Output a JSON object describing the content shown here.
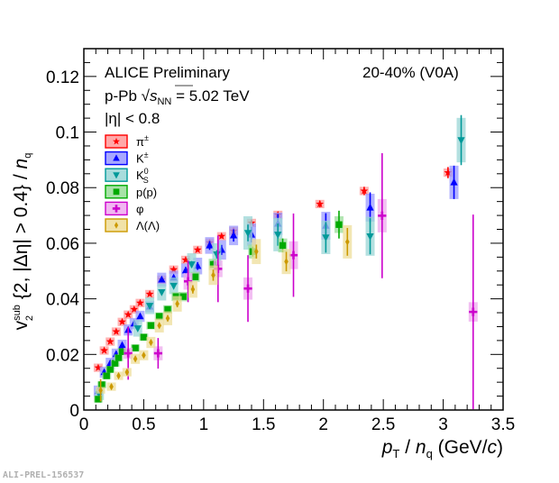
{
  "chart_data": {
    "type": "scatter",
    "title": "",
    "xlabel": "p_T / n_q (GeV/c)",
    "ylabel": "v_2^sub {2, |Δη| > 0.4} / n_q",
    "xlim": [
      0,
      3.5
    ],
    "ylim": [
      0,
      0.13
    ],
    "x_ticks": [
      "0",
      "0.5",
      "1",
      "1.5",
      "2",
      "2.5",
      "3",
      "3.5"
    ],
    "x_tick_values": [
      0,
      0.5,
      1,
      1.5,
      2,
      2.5,
      3,
      3.5
    ],
    "y_ticks": [
      "0",
      "0.02",
      "0.04",
      "0.06",
      "0.08",
      "0.1",
      "0.12"
    ],
    "y_tick_values": [
      0,
      0.02,
      0.04,
      0.06,
      0.08,
      0.1,
      0.12
    ],
    "grid": false,
    "legend_position": "top-left",
    "annotations": {
      "experiment": "ALICE Preliminary",
      "system_prefix": "p-Pb ",
      "system_sqrt": "s",
      "system_sub": "NN",
      "system_suffix": " = 5.02 TeV",
      "eta_cut": "|η| < 0.8",
      "centrality": "20-40% (V0A)",
      "watermark": "ALI-PREL-156537"
    },
    "series": [
      {
        "name": "π±",
        "label_main": "π",
        "label_sup": "±",
        "label_sub": "",
        "marker": "star",
        "color": "#ff0000",
        "fill": "#ff9999",
        "x": [
          0.12,
          0.17,
          0.22,
          0.27,
          0.32,
          0.37,
          0.42,
          0.47,
          0.55,
          0.65,
          0.75,
          0.85,
          0.95,
          1.05,
          1.15,
          1.25,
          1.4,
          1.62,
          1.97,
          2.34,
          3.04
        ],
        "y": [
          0.0152,
          0.0214,
          0.0246,
          0.0282,
          0.0317,
          0.0343,
          0.0362,
          0.0385,
          0.0417,
          0.0469,
          0.0505,
          0.054,
          0.0576,
          0.0602,
          0.0625,
          0.0644,
          0.0673,
          0.0702,
          0.0741,
          0.0788,
          0.0854
        ],
        "stat_err": [
          0.0004,
          0.0004,
          0.0004,
          0.0004,
          0.0004,
          0.0004,
          0.0004,
          0.0004,
          0.0005,
          0.0005,
          0.0005,
          0.0005,
          0.0006,
          0.0006,
          0.0007,
          0.0008,
          0.0009,
          0.001,
          0.0012,
          0.0015,
          0.002
        ],
        "sys_err": [
          0.0015,
          0.0015,
          0.0015,
          0.0015,
          0.0015,
          0.0015,
          0.0015,
          0.0015,
          0.0015,
          0.0015,
          0.0015,
          0.0015,
          0.0015,
          0.0015,
          0.0015,
          0.0015,
          0.0015,
          0.0015,
          0.0015,
          0.0015,
          0.0015
        ]
      },
      {
        "name": "K±",
        "label_main": "K",
        "label_sup": "±",
        "label_sub": "",
        "marker": "triangle-up",
        "color": "#0000ff",
        "fill": "#9999ff",
        "x": [
          0.12,
          0.17,
          0.22,
          0.27,
          0.32,
          0.37,
          0.42,
          0.47,
          0.55,
          0.65,
          0.75,
          0.85,
          0.95,
          1.05,
          1.15,
          1.25,
          1.4,
          1.62,
          2.02,
          2.39,
          3.09
        ],
        "y": [
          0.0068,
          0.0136,
          0.0168,
          0.0201,
          0.0233,
          0.0288,
          0.0311,
          0.0337,
          0.0372,
          0.0469,
          0.0476,
          0.0502,
          0.0518,
          0.0592,
          0.0576,
          0.0628,
          0.0631,
          0.067,
          0.0663,
          0.0728,
          0.0819
        ],
        "stat_err": [
          0.0006,
          0.0006,
          0.0006,
          0.0006,
          0.0006,
          0.0006,
          0.0006,
          0.0007,
          0.0008,
          0.0009,
          0.001,
          0.0012,
          0.0014,
          0.0016,
          0.0018,
          0.0022,
          0.0028,
          0.0035,
          0.0045,
          0.0055,
          0.006
        ],
        "sys_err": [
          0.002,
          0.002,
          0.002,
          0.002,
          0.002,
          0.002,
          0.002,
          0.002,
          0.002,
          0.0025,
          0.0025,
          0.0025,
          0.003,
          0.003,
          0.0035,
          0.0035,
          0.004,
          0.004,
          0.005,
          0.005,
          0.006
        ]
      },
      {
        "name": "K0S",
        "label_main": "K",
        "label_sup": "0",
        "label_sub": "S",
        "marker": "triangle-down",
        "color": "#009999",
        "fill": "#99d6d6",
        "x": [
          0.13,
          0.45,
          0.55,
          0.65,
          0.75,
          0.9,
          1.11,
          1.37,
          1.62,
          2.02,
          2.39,
          3.15
        ],
        "y": [
          0.0056,
          0.0294,
          0.0375,
          0.0424,
          0.0447,
          0.0524,
          0.056,
          0.0637,
          0.0631,
          0.0621,
          0.0625,
          0.0971
        ],
        "stat_err": [
          0.0008,
          0.0008,
          0.0008,
          0.0009,
          0.001,
          0.0012,
          0.0015,
          0.003,
          0.004,
          0.0055,
          0.0065,
          0.009
        ],
        "sys_err": [
          0.002,
          0.003,
          0.003,
          0.003,
          0.003,
          0.004,
          0.004,
          0.006,
          0.006,
          0.006,
          0.007,
          0.008
        ]
      },
      {
        "name": "p(p̄)",
        "label_main": "p(p)",
        "label_sup": "",
        "label_sub": "",
        "marker": "square",
        "color": "#00aa00",
        "fill": "#99dd99",
        "x": [
          0.12,
          0.15,
          0.19,
          0.22,
          0.26,
          0.29,
          0.32,
          0.43,
          0.5,
          0.56,
          0.63,
          0.7,
          0.77,
          0.83,
          0.93,
          1.08,
          1.41,
          1.66,
          2.13
        ],
        "y": [
          0.0039,
          0.0091,
          0.0123,
          0.0146,
          0.0168,
          0.0188,
          0.021,
          0.0223,
          0.0262,
          0.0304,
          0.0337,
          0.0362,
          0.0408,
          0.0408,
          0.0479,
          0.0524,
          0.057,
          0.0592,
          0.0667
        ],
        "stat_err": [
          0.0005,
          0.0005,
          0.0005,
          0.0005,
          0.0005,
          0.0005,
          0.0005,
          0.0005,
          0.0006,
          0.0006,
          0.0006,
          0.0007,
          0.0008,
          0.0009,
          0.001,
          0.0013,
          0.0018,
          0.0025,
          0.005
        ],
        "sys_err": [
          0.0012,
          0.0012,
          0.0012,
          0.0012,
          0.0012,
          0.0012,
          0.0012,
          0.0013,
          0.0013,
          0.0014,
          0.0014,
          0.0015,
          0.0016,
          0.0017,
          0.0018,
          0.002,
          0.0025,
          0.0025,
          0.003
        ]
      },
      {
        "name": "φ",
        "label_main": "φ",
        "label_sup": "",
        "label_sub": "",
        "marker": "cross",
        "color": "#cc00cc",
        "fill": "#eeaaee",
        "x": [
          0.37,
          0.62,
          0.87,
          1.12,
          1.37,
          1.75,
          2.49,
          3.25
        ],
        "y": [
          0.0204,
          0.0204,
          0.0463,
          0.0508,
          0.0437,
          0.0557,
          0.0699,
          0.0353
        ],
        "stat_err": [
          0.0095,
          0.0055,
          0.0075,
          0.012,
          0.012,
          0.015,
          0.0225,
          0.035
        ],
        "sys_err": [
          0.002,
          0.0025,
          0.003,
          0.003,
          0.004,
          0.005,
          0.006,
          0.0035
        ]
      },
      {
        "name": "Λ(Λ̄)",
        "label_main": "Λ(Λ)",
        "label_sup": "",
        "label_sub": "",
        "marker": "diamond",
        "color": "#cc9900",
        "fill": "#eedd99",
        "x": [
          0.14,
          0.23,
          0.29,
          0.36,
          0.43,
          0.5,
          0.56,
          0.63,
          0.7,
          0.78,
          0.91,
          1.08,
          1.44,
          1.69,
          2.2
        ],
        "y": [
          0.0071,
          0.0084,
          0.0123,
          0.0136,
          0.0184,
          0.0197,
          0.0243,
          0.0304,
          0.033,
          0.0382,
          0.0434,
          0.0485,
          0.057,
          0.0534,
          0.0605
        ],
        "stat_err": [
          0.004,
          0.001,
          0.0008,
          0.0008,
          0.0008,
          0.0008,
          0.0009,
          0.001,
          0.0011,
          0.0012,
          0.0015,
          0.002,
          0.0025,
          0.0035,
          0.005
        ],
        "sys_err": [
          0.0012,
          0.0015,
          0.0015,
          0.0015,
          0.0018,
          0.0018,
          0.002,
          0.0025,
          0.0025,
          0.0028,
          0.003,
          0.0035,
          0.0045,
          0.0045,
          0.006
        ]
      }
    ]
  }
}
